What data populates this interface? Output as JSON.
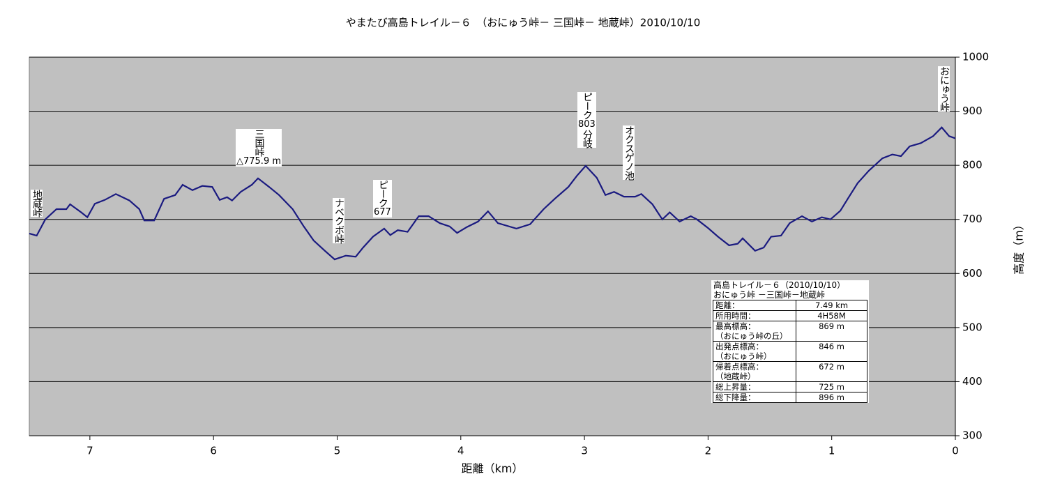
{
  "chart_data": {
    "type": "line",
    "title": "やまたび高島トレイル－６　（おにゅう峠－ 三国峠－ 地蔵峠）2010/10/10",
    "x_label": "距離（km）",
    "y_label": "高度（m）",
    "x": [
      7.49,
      7.43,
      7.36,
      7.27,
      7.19,
      7.16,
      7.07,
      7.02,
      6.96,
      6.88,
      6.79,
      6.68,
      6.6,
      6.56,
      6.48,
      6.4,
      6.31,
      6.25,
      6.17,
      6.09,
      6.01,
      5.95,
      5.89,
      5.85,
      5.78,
      5.69,
      5.64,
      5.55,
      5.47,
      5.36,
      5.27,
      5.19,
      5.1,
      5.02,
      4.93,
      4.85,
      4.79,
      4.71,
      4.62,
      4.57,
      4.51,
      4.43,
      4.34,
      4.26,
      4.17,
      4.09,
      4.03,
      3.95,
      3.86,
      3.78,
      3.7,
      3.55,
      3.44,
      3.33,
      3.24,
      3.13,
      3.06,
      2.99,
      2.9,
      2.83,
      2.76,
      2.68,
      2.59,
      2.54,
      2.45,
      2.37,
      2.31,
      2.23,
      2.14,
      2.09,
      2.0,
      1.92,
      1.83,
      1.76,
      1.72,
      1.62,
      1.55,
      1.49,
      1.41,
      1.34,
      1.24,
      1.16,
      1.08,
      1.01,
      0.93,
      0.87,
      0.79,
      0.7,
      0.59,
      0.51,
      0.44,
      0.37,
      0.28,
      0.18,
      0.11,
      0.05,
      0.0
    ],
    "values": [
      674,
      670,
      700,
      719,
      719,
      728,
      713,
      704,
      729,
      736,
      747,
      735,
      719,
      698,
      698,
      738,
      745,
      764,
      754,
      762,
      760,
      736,
      741,
      735,
      751,
      764,
      776,
      760,
      745,
      719,
      687,
      661,
      642,
      626,
      633,
      631,
      648,
      668,
      683,
      671,
      680,
      677,
      706,
      706,
      693,
      687,
      675,
      686,
      696,
      715,
      693,
      683,
      691,
      719,
      738,
      760,
      781,
      799,
      777,
      745,
      751,
      742,
      742,
      747,
      728,
      700,
      713,
      696,
      706,
      700,
      684,
      668,
      652,
      655,
      665,
      642,
      648,
      668,
      670,
      693,
      706,
      696,
      704,
      700,
      716,
      738,
      767,
      790,
      813,
      820,
      817,
      835,
      841,
      854,
      870,
      854,
      850
    ],
    "color": "#1a1a80",
    "xlim": [
      7.49,
      0
    ],
    "xticks": [
      7,
      6,
      5,
      4,
      3,
      2,
      1,
      0
    ],
    "ylim": [
      300,
      1000
    ],
    "yticks": [
      300,
      400,
      500,
      600,
      700,
      800,
      900,
      1000
    ],
    "grid": true,
    "annotations": [
      {
        "lines": [
          "地蔵峠"
        ]
      },
      {
        "lines": [
          "三国峠",
          "△775.9 m"
        ]
      },
      {
        "lines": [
          "ナベクボ峠"
        ]
      },
      {
        "lines": [
          "ピーク",
          "677"
        ]
      },
      {
        "lines": [
          "ピーク",
          "803",
          "分岐"
        ]
      },
      {
        "lines": [
          "オクスゲノ池"
        ]
      },
      {
        "lines": [
          "おにゅう峠"
        ]
      }
    ],
    "info": {
      "title": [
        "高島トレイル－６（2010/10/10）",
        "おにゅう峠 －三国峠－地蔵峠"
      ],
      "rows": [
        [
          [
            "距離："
          ],
          "7.49 km"
        ],
        [
          [
            "所用時間："
          ],
          "4H58M"
        ],
        [
          [
            "最高標高：",
            "（おにゅう峠の丘）"
          ],
          "869 m"
        ],
        [
          [
            "出発点標高：",
            "（おにゅう峠）"
          ],
          "846 m"
        ],
        [
          [
            "帰着点標高：",
            "（地蔵峠）"
          ],
          "672 m"
        ],
        [
          [
            "総上昇量："
          ],
          "725 m"
        ],
        [
          [
            "総下降量："
          ],
          "896 m"
        ]
      ]
    }
  }
}
